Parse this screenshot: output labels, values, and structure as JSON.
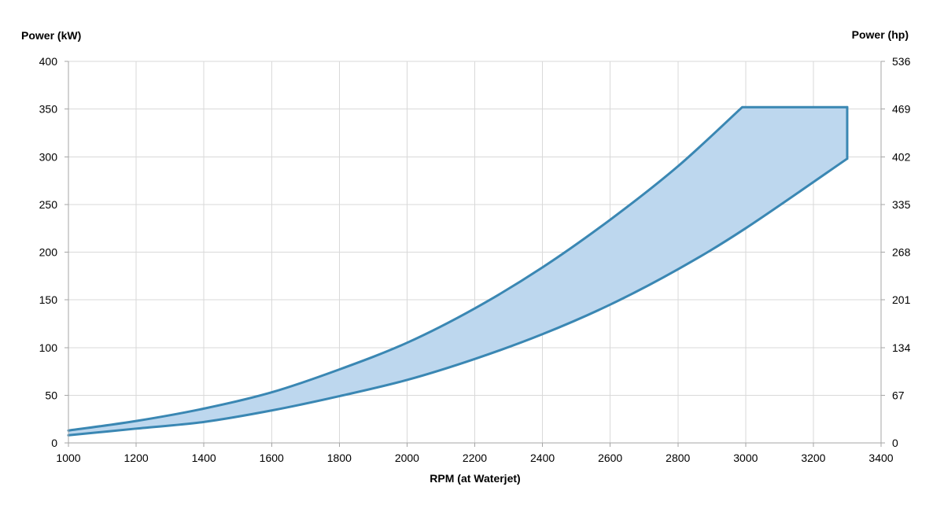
{
  "chart_data": {
    "type": "area",
    "title": "",
    "xlabel": "RPM (at Waterjet)",
    "ylabel_left": "Power (kW)",
    "ylabel_right": "Power (hp)",
    "xlim": [
      1000,
      3400
    ],
    "ylim": [
      0,
      400
    ],
    "grid": true,
    "legend": "none",
    "x_ticks": [
      "1000",
      "1200",
      "1400",
      "1600",
      "1800",
      "2000",
      "2200",
      "2400",
      "2600",
      "2800",
      "3000",
      "3200",
      "3400"
    ],
    "y_ticks_left": [
      "0",
      "50",
      "100",
      "150",
      "200",
      "250",
      "300",
      "350",
      "400"
    ],
    "y_ticks_right": [
      "0",
      "67",
      "134",
      "201",
      "268",
      "335",
      "402",
      "469",
      "536"
    ],
    "upper_curve": {
      "x": [
        1000,
        1200,
        1400,
        1600,
        1800,
        2000,
        2200,
        2400,
        2600,
        2800,
        2990,
        3300
      ],
      "y": [
        13,
        23,
        36,
        53,
        77,
        105,
        141,
        184,
        234,
        290,
        352,
        352
      ]
    },
    "lower_curve": {
      "x": [
        1000,
        1200,
        1400,
        1600,
        1800,
        2000,
        2200,
        2400,
        2600,
        2800,
        3000,
        3300
      ],
      "y": [
        8,
        15,
        22,
        34,
        49,
        66,
        88,
        114,
        145,
        182,
        225,
        298
      ]
    },
    "colors": {
      "line": "#3a87b3",
      "fill": "#bdd7ee"
    }
  }
}
